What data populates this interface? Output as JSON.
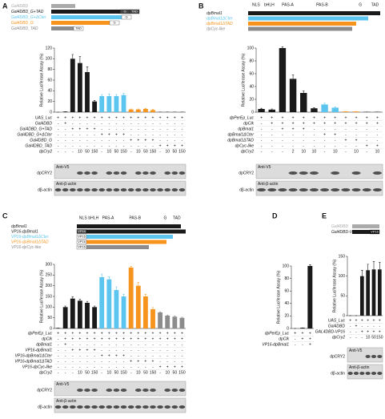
{
  "chart_data": [
    {
      "type": "bar",
      "panel": "A",
      "ylabel": "Relative Luciferase Assay (%)",
      "ylim": [
        0,
        120
      ],
      "yticks": [
        0,
        20,
        40,
        60,
        80,
        100,
        120
      ],
      "constructs": [
        {
          "name": "Gal4DBD",
          "color": "#aaaaaa",
          "tags": []
        },
        {
          "name": "Gal4DBD_G+TAD",
          "color": "#1a1a1a",
          "tags": [
            "G",
            "TAD"
          ]
        },
        {
          "name": "Gal4DBD_G+ΔCter",
          "color": "#5bc5ef",
          "tags": [
            "G"
          ]
        },
        {
          "name": "Gal4DBD_G",
          "color": "#f7941d",
          "tags": [
            "G"
          ]
        },
        {
          "name": "Gal4DBD_TAD",
          "color": "#8c8c8c",
          "tags": [
            "TAD"
          ]
        }
      ],
      "values": [
        0,
        1,
        100,
        92,
        75,
        20,
        30,
        30,
        30,
        32,
        5,
        5,
        6,
        4,
        1,
        1,
        1,
        1
      ],
      "errors": [
        0,
        0,
        8,
        12,
        10,
        2,
        3,
        4,
        3,
        3,
        1,
        1,
        1,
        1,
        0,
        0,
        0,
        0
      ],
      "colors": [
        "#1a1a1a",
        "#1a1a1a",
        "#1a1a1a",
        "#1a1a1a",
        "#1a1a1a",
        "#1a1a1a",
        "#5bc5ef",
        "#5bc5ef",
        "#5bc5ef",
        "#5bc5ef",
        "#f7941d",
        "#f7941d",
        "#f7941d",
        "#f7941d",
        "#8c8c8c",
        "#8c8c8c",
        "#8c8c8c",
        "#8c8c8c"
      ],
      "design": [
        {
          "name": "UAS_Luc",
          "cells": [
            "+",
            "+",
            "+",
            "+",
            "+",
            "+",
            "+",
            "+",
            "+",
            "+",
            "+",
            "+",
            "+",
            "+",
            "+",
            "+",
            "+",
            "+"
          ]
        },
        {
          "name": "Gal4DBD",
          "cells": [
            "-",
            "+",
            "-",
            "-",
            "-",
            "-",
            "-",
            "-",
            "-",
            "-",
            "-",
            "-",
            "-",
            "-",
            "-",
            "-",
            "-",
            "-"
          ]
        },
        {
          "name": "Gal4DBD_G+TAD",
          "cells": [
            "-",
            "-",
            "+",
            "+",
            "+",
            "+",
            "-",
            "-",
            "-",
            "-",
            "-",
            "-",
            "-",
            "-",
            "-",
            "-",
            "-",
            "-"
          ]
        },
        {
          "name": "Gal4DBD_G+ΔCter",
          "cells": [
            "-",
            "-",
            "-",
            "-",
            "-",
            "-",
            "+",
            "+",
            "+",
            "+",
            "-",
            "-",
            "-",
            "-",
            "-",
            "-",
            "-",
            "-"
          ]
        },
        {
          "name": "Gal4DBD_G",
          "cells": [
            "-",
            "-",
            "-",
            "-",
            "-",
            "-",
            "-",
            "-",
            "-",
            "-",
            "+",
            "+",
            "+",
            "+",
            "-",
            "-",
            "-",
            "-"
          ]
        },
        {
          "name": "Gal4DBD_TAD",
          "cells": [
            "-",
            "-",
            "-",
            "-",
            "-",
            "-",
            "-",
            "-",
            "-",
            "-",
            "-",
            "-",
            "-",
            "-",
            "+",
            "+",
            "+",
            "+"
          ]
        },
        {
          "name": "dpCry2",
          "cells": [
            "-",
            "-",
            "-",
            "10",
            "50",
            "150",
            "-",
            "10",
            "50",
            "150",
            "-",
            "10",
            "50",
            "150",
            "-",
            "10",
            "50",
            "150"
          ]
        }
      ],
      "blot": [
        {
          "antibody": "Anti-V5",
          "protein": "dpCRY2"
        },
        {
          "antibody": "Anti-β-actin",
          "protein": "dβ-actin"
        }
      ]
    },
    {
      "type": "bar",
      "panel": "B",
      "ylabel": "Relative Luciferase Assay (%)",
      "ylim": [
        0,
        100
      ],
      "yticks": [
        0,
        20,
        40,
        60,
        80,
        100
      ],
      "domains": [
        "NLS",
        "bHLH",
        "PAS-A",
        "PAS-B",
        "G",
        "TAD"
      ],
      "constructs": [
        {
          "name": "dpBmal1",
          "color": "#1a1a1a",
          "tags": []
        },
        {
          "name": "dpBmal1ΔCter",
          "color": "#5bc5ef",
          "tags": []
        },
        {
          "name": "dpBmal1ΔTAD",
          "color": "#f7941d",
          "tags": []
        },
        {
          "name": "dpCyc-like",
          "color": "#8c8c8c",
          "tags": []
        }
      ],
      "values": [
        5,
        4,
        100,
        52,
        30,
        6,
        12,
        7,
        1,
        1,
        1,
        1
      ],
      "errors": [
        1,
        1,
        2,
        6,
        3,
        1,
        2,
        1,
        0,
        0,
        0,
        0
      ],
      "colors": [
        "#1a1a1a",
        "#1a1a1a",
        "#1a1a1a",
        "#1a1a1a",
        "#1a1a1a",
        "#1a1a1a",
        "#5bc5ef",
        "#5bc5ef",
        "#f7941d",
        "#f7941d",
        "#8c8c8c",
        "#8c8c8c"
      ],
      "design": [
        {
          "name": "dpPerEp_Luc",
          "cells": [
            "+",
            "+",
            "+",
            "+",
            "+",
            "+",
            "+",
            "+",
            "+",
            "+",
            "+",
            "+"
          ]
        },
        {
          "name": "dpClk",
          "cells": [
            "-",
            "+",
            "+",
            "+",
            "+",
            "+",
            "+",
            "+",
            "+",
            "+",
            "+",
            "+"
          ]
        },
        {
          "name": "dpBmal1",
          "cells": [
            "-",
            "-",
            "+",
            "+",
            "+",
            "-",
            "-",
            "-",
            "-",
            "-",
            "-",
            "-"
          ]
        },
        {
          "name": "dpBmal1ΔCter",
          "cells": [
            "-",
            "-",
            "-",
            "-",
            "-",
            "-",
            "+",
            "+",
            "-",
            "-",
            "-",
            "-"
          ]
        },
        {
          "name": "dpBmal1ΔTAD",
          "cells": [
            "-",
            "-",
            "-",
            "-",
            "-",
            "-",
            "-",
            "-",
            "+",
            "+",
            "-",
            "-"
          ]
        },
        {
          "name": "dpCyc-like",
          "cells": [
            "-",
            "-",
            "-",
            "-",
            "-",
            "-",
            "-",
            "-",
            "-",
            "-",
            "+",
            "+"
          ]
        },
        {
          "name": "dpCry2",
          "cells": [
            "-",
            "-",
            "-",
            "2",
            "10",
            "10",
            "-",
            "10",
            "-",
            "10",
            "-",
            "10"
          ]
        }
      ],
      "blot": [
        {
          "antibody": "Anti-V5",
          "protein": "dpCRY2"
        },
        {
          "antibody": "Anti-β-actin",
          "protein": "dβ-actin"
        }
      ]
    },
    {
      "type": "bar",
      "panel": "C",
      "ylabel": "Relative Luciferase Assay (%)",
      "ylim": [
        0,
        300
      ],
      "yticks": [
        0,
        50,
        100,
        150,
        200,
        250,
        300
      ],
      "domains": [
        "NLS",
        "bHLH",
        "PAS-A",
        "PAS-B",
        "G",
        "TAD"
      ],
      "constructs": [
        {
          "name": "dpBmal1",
          "color": "#1a1a1a",
          "tags": []
        },
        {
          "name": "VP16-dpBmal1",
          "color": "#1a1a1a",
          "tags": [
            "VP16"
          ]
        },
        {
          "name": "VP16-dpBmal1ΔCter",
          "color": "#5bc5ef",
          "tags": [
            "VP16"
          ]
        },
        {
          "name": "VP16-dpBmal1ΔTAD",
          "color": "#f7941d",
          "tags": [
            "VP16"
          ]
        },
        {
          "name": "VP16-dpCyc-like",
          "color": "#8c8c8c",
          "tags": [
            "VP16"
          ]
        }
      ],
      "values": [
        2,
        100,
        140,
        130,
        120,
        100,
        240,
        230,
        180,
        150,
        285,
        200,
        150,
        90,
        75,
        60,
        55,
        50
      ],
      "errors": [
        0,
        5,
        8,
        6,
        7,
        5,
        15,
        12,
        15,
        10,
        5,
        15,
        10,
        8,
        3,
        3,
        3,
        3
      ],
      "colors": [
        "#1a1a1a",
        "#1a1a1a",
        "#1a1a1a",
        "#1a1a1a",
        "#1a1a1a",
        "#1a1a1a",
        "#5bc5ef",
        "#5bc5ef",
        "#5bc5ef",
        "#5bc5ef",
        "#f7941d",
        "#f7941d",
        "#f7941d",
        "#f7941d",
        "#8c8c8c",
        "#8c8c8c",
        "#8c8c8c",
        "#8c8c8c"
      ],
      "design": [
        {
          "name": "dpPerEp_Luc",
          "cells": [
            "+",
            "+",
            "+",
            "+",
            "+",
            "+",
            "+",
            "+",
            "+",
            "+",
            "+",
            "+",
            "+",
            "+",
            "+",
            "+",
            "+",
            "+"
          ]
        },
        {
          "name": "dpClk",
          "cells": [
            "-",
            "+",
            "+",
            "+",
            "+",
            "+",
            "+",
            "+",
            "+",
            "+",
            "+",
            "+",
            "+",
            "+",
            "+",
            "+",
            "+",
            "+"
          ]
        },
        {
          "name": "dpBmal1",
          "cells": [
            "-",
            "+",
            "-",
            "-",
            "-",
            "-",
            "-",
            "-",
            "-",
            "-",
            "-",
            "-",
            "-",
            "-",
            "-",
            "-",
            "-",
            "-"
          ]
        },
        {
          "name": "VP16-dpBmal1",
          "cells": [
            "-",
            "-",
            "+",
            "+",
            "+",
            "+",
            "-",
            "-",
            "-",
            "-",
            "-",
            "-",
            "-",
            "-",
            "-",
            "-",
            "-",
            "-"
          ]
        },
        {
          "name": "VP16-dpBmal1ΔCter",
          "cells": [
            "-",
            "-",
            "-",
            "-",
            "-",
            "-",
            "+",
            "+",
            "+",
            "+",
            "-",
            "-",
            "-",
            "-",
            "-",
            "-",
            "-",
            "-"
          ]
        },
        {
          "name": "VP16-dpBmal1ΔTAD",
          "cells": [
            "-",
            "-",
            "-",
            "-",
            "-",
            "-",
            "-",
            "-",
            "-",
            "-",
            "+",
            "+",
            "+",
            "+",
            "-",
            "-",
            "-",
            "-"
          ]
        },
        {
          "name": "VP16-dpCyc-like",
          "cells": [
            "-",
            "-",
            "-",
            "-",
            "-",
            "-",
            "-",
            "-",
            "-",
            "-",
            "-",
            "-",
            "-",
            "-",
            "+",
            "+",
            "+",
            "+"
          ]
        },
        {
          "name": "dpCry2",
          "cells": [
            "-",
            "-",
            "-",
            "10",
            "50",
            "150",
            "-",
            "10",
            "50",
            "150",
            "-",
            "10",
            "50",
            "150",
            "-",
            "10",
            "50",
            "150"
          ]
        }
      ],
      "blot": [
        {
          "antibody": "Anti-V5",
          "protein": "dpCRY2"
        },
        {
          "antibody": "Anti-β-actin",
          "protein": "dβ-actin"
        }
      ]
    },
    {
      "type": "bar",
      "panel": "D",
      "ylabel": "Relative Luciferase Assay (%)",
      "ylim": [
        0,
        100
      ],
      "yticks": [
        0,
        20,
        40,
        60,
        80,
        100
      ],
      "values": [
        0,
        1,
        100
      ],
      "errors": [
        0,
        0,
        2
      ],
      "colors": [
        "#1a1a1a",
        "#1a1a1a",
        "#1a1a1a"
      ],
      "design": [
        {
          "name": "dpPerEp_Luc",
          "cells": [
            "+",
            "+",
            "+"
          ]
        },
        {
          "name": "dpClk",
          "cells": [
            "-",
            "+",
            "+"
          ]
        },
        {
          "name": "VP16-dpBmal1",
          "cells": [
            "-",
            "-",
            "+"
          ]
        }
      ]
    },
    {
      "type": "bar",
      "panel": "E",
      "ylabel": "Relative Luciferase Assay (%)",
      "ylim": [
        0,
        150
      ],
      "yticks": [
        0,
        50,
        100,
        150
      ],
      "constructs": [
        {
          "name": "Gal4DBD",
          "color": "#aaaaaa",
          "tags": []
        },
        {
          "name": "Gal4DBD-VP16",
          "color": "#1a1a1a",
          "tags": [
            "VP16"
          ]
        }
      ],
      "values": [
        0,
        0,
        100,
        115,
        117,
        117
      ],
      "errors": [
        0,
        0,
        15,
        15,
        20,
        18
      ],
      "colors": [
        "#1a1a1a",
        "#1a1a1a",
        "#1a1a1a",
        "#1a1a1a",
        "#1a1a1a",
        "#1a1a1a"
      ],
      "design": [
        {
          "name": "UAS_Luc",
          "cells": [
            "+",
            "+",
            "+",
            "+",
            "+",
            "+"
          ]
        },
        {
          "name": "Gal4DBD",
          "cells": [
            "-",
            "+",
            "-",
            "-",
            "-",
            "-"
          ]
        },
        {
          "name": "GAL4DBD-VP16",
          "cells": [
            "-",
            "-",
            "+",
            "+",
            "+",
            "+"
          ]
        },
        {
          "name": "dpCry2",
          "cells": [
            "-",
            "-",
            "-",
            "10",
            "50",
            "150"
          ]
        }
      ],
      "blot": [
        {
          "antibody": "Anti-V5",
          "protein": "dpCRY2"
        },
        {
          "antibody": "Anti-β-actin",
          "protein": "dβ-actin"
        }
      ]
    }
  ]
}
